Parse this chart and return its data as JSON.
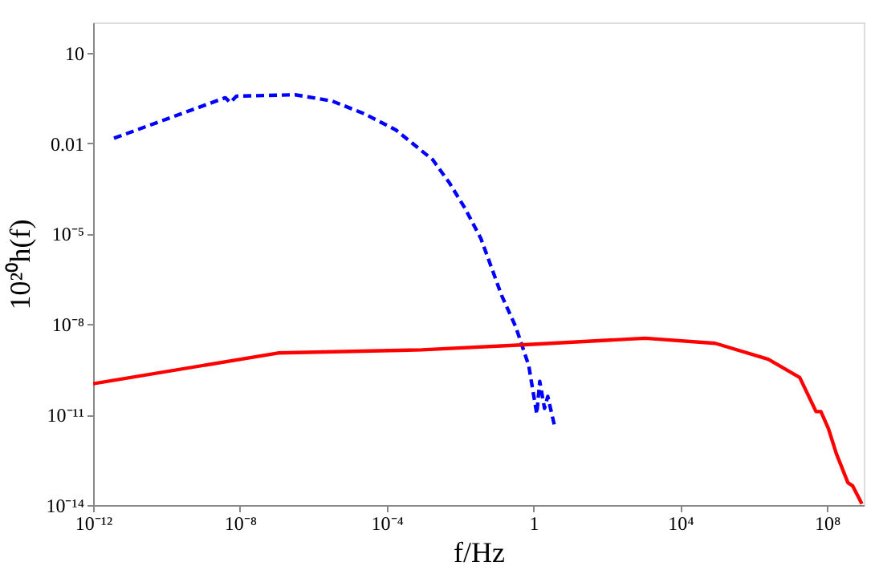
{
  "chart_data": {
    "type": "line",
    "xlabel": "f/Hz",
    "ylabel": "10²⁰h(f)",
    "log": "xy",
    "grid": false,
    "marker": "none",
    "xlim": [
      1e-12,
      1000000000.0
    ],
    "ylim": [
      1e-14,
      100
    ],
    "xticks": [
      {
        "value": 1e-12,
        "label": "10⁻¹²"
      },
      {
        "value": 1e-08,
        "label": "10⁻⁸"
      },
      {
        "value": 0.0001,
        "label": "10⁻⁴"
      },
      1,
      {
        "value": 10000,
        "label": "10⁴"
      },
      {
        "value": 100000000,
        "label": "10⁸"
      }
    ],
    "yticks": [
      {
        "value": 1e-14,
        "label": "10⁻¹⁴"
      },
      {
        "value": 1e-11,
        "label": "10⁻¹¹"
      },
      {
        "value": 1e-08,
        "label": "10⁻⁸"
      },
      {
        "value": 1e-05,
        "label": "10⁻⁵"
      },
      0.01,
      10
    ],
    "series": [
      {
        "color": "#0000ff",
        "line_style": "dashed",
        "x": [
          3.7e-12,
          4e-09,
          5.5e-09,
          8e-09,
          3.2e-07,
          3.2e-06,
          2.5e-05,
          0.00018,
          0.0018,
          0.005,
          0.0135,
          0.037,
          0.05,
          0.135,
          0.33,
          0.74,
          1.23,
          1.48,
          2.0,
          2.45,
          3.7
        ],
        "values": [
          0.0145,
          0.32,
          0.22,
          0.36,
          0.4,
          0.25,
          0.093,
          0.027,
          0.0028,
          0.0005,
          7e-05,
          6.8e-06,
          2.5e-06,
          9e-08,
          8e-09,
          4.3e-10,
          1.05e-11,
          1.26e-10,
          1.6e-11,
          4e-11,
          4.5e-12
        ]
      },
      {
        "color": "#ff0000",
        "line_style": "solid",
        "x": [
          1e-12,
          1.1e-07,
          0.0009,
          0.37,
          1100,
          90000.0,
          2500000.0,
          18000000.0,
          50000000.0,
          68000000.0,
          110000000.0,
          180000000.0,
          370000000.0,
          500000000.0,
          890000000.0
        ],
        "values": [
          1.05e-10,
          1.1e-09,
          1.4e-09,
          2e-09,
          3.4e-09,
          2.3e-09,
          6.8e-10,
          1.7e-10,
          1.26e-11,
          1.26e-11,
          3.3e-12,
          5e-13,
          5.5e-14,
          4.3e-14,
          1.1e-14
        ]
      }
    ]
  }
}
